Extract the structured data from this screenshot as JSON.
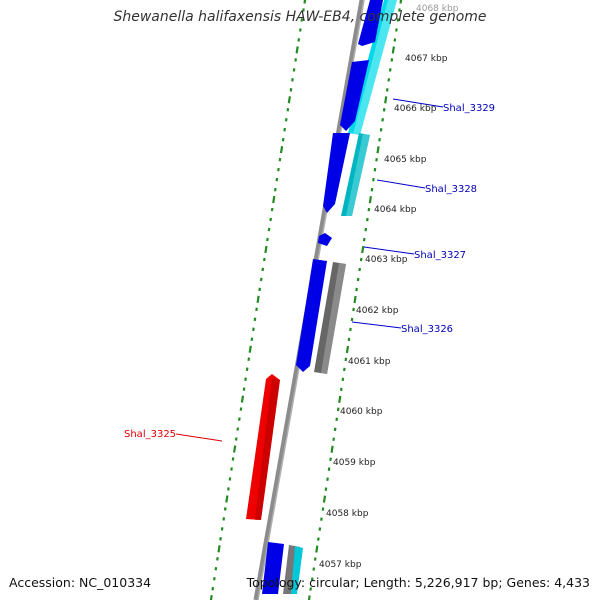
{
  "title": "Shewanella halifaxensis HAW-EB4, complete genome",
  "footer": {
    "accession": "Accession: NC_010334",
    "summary": "Topology: circular; Length: 5,226,917 bp; Genes: 4,433"
  },
  "colors": {
    "backbone": "#8c8c8c",
    "ticks": "#228b22",
    "forward_cds": "#0000e6",
    "forward_shade": "#00c8d8",
    "gray_feature": "#666666",
    "reverse_cds": "#ee0000",
    "forward_label": "#0000bb",
    "reverse_label": "#dd0000"
  },
  "scale": {
    "labels": [
      {
        "text": "4068 kbp",
        "faded": true
      },
      {
        "text": "4067 kbp"
      },
      {
        "text": "4066 kbp"
      },
      {
        "text": "4065 kbp"
      },
      {
        "text": "4064 kbp"
      },
      {
        "text": "4063 kbp"
      },
      {
        "text": "4062 kbp"
      },
      {
        "text": "4061 kbp"
      },
      {
        "text": "4060 kbp"
      },
      {
        "text": "4059 kbp"
      },
      {
        "text": "4058 kbp"
      },
      {
        "text": "4057 kbp"
      }
    ]
  },
  "gene_labels": [
    {
      "text": "Shal_3329",
      "strand": "forward"
    },
    {
      "text": "Shal_3328",
      "strand": "forward"
    },
    {
      "text": "Shal_3327",
      "strand": "forward"
    },
    {
      "text": "Shal_3326",
      "strand": "forward"
    },
    {
      "text": "Shal_3325",
      "strand": "reverse"
    }
  ]
}
